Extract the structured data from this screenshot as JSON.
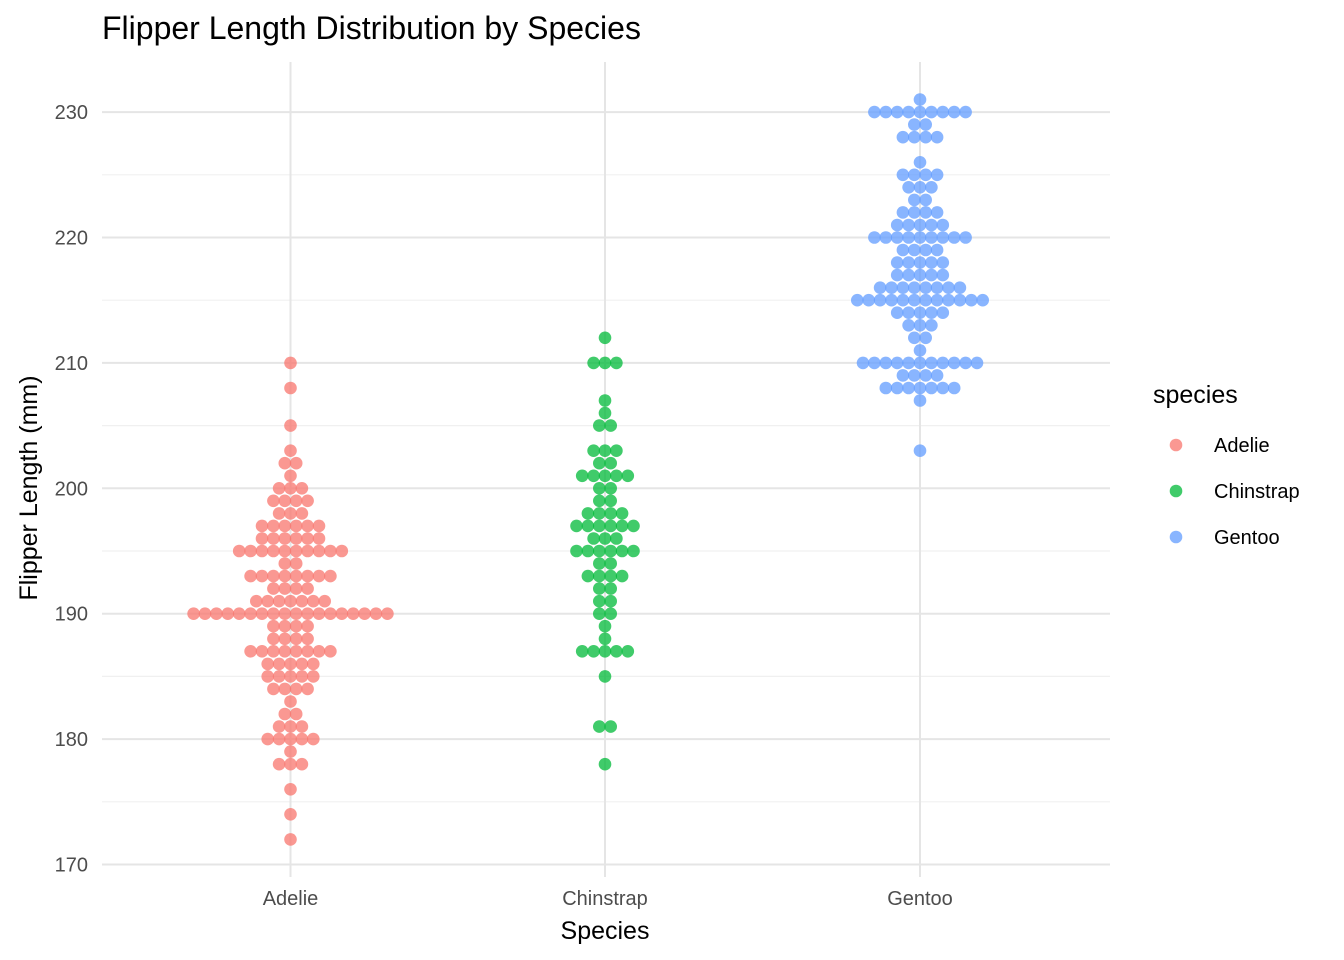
{
  "chart_data": {
    "type": "scatter",
    "subtype": "beeswarm",
    "title": "Flipper Length Distribution by Species",
    "xlabel": "Species",
    "ylabel": "Flipper Length (mm)",
    "ylim": [
      170,
      230
    ],
    "yticks": [
      170,
      180,
      190,
      200,
      210,
      220,
      230
    ],
    "categories": [
      "Adelie",
      "Chinstrap",
      "Gentoo"
    ],
    "grid": true,
    "legend": {
      "title": "species",
      "position": "right"
    },
    "series": [
      {
        "name": "Adelie",
        "color": "#F8766D",
        "values": [
          172,
          174,
          176,
          178,
          178,
          178,
          179,
          180,
          180,
          180,
          180,
          180,
          181,
          181,
          181,
          182,
          182,
          183,
          184,
          184,
          184,
          184,
          185,
          185,
          185,
          185,
          185,
          186,
          186,
          186,
          186,
          186,
          187,
          187,
          187,
          187,
          187,
          187,
          187,
          187,
          188,
          188,
          188,
          188,
          189,
          189,
          189,
          189,
          190,
          190,
          190,
          190,
          190,
          190,
          190,
          190,
          190,
          190,
          190,
          190,
          190,
          190,
          190,
          190,
          190,
          190,
          191,
          191,
          191,
          191,
          191,
          191,
          191,
          192,
          192,
          192,
          192,
          193,
          193,
          193,
          193,
          193,
          193,
          193,
          193,
          194,
          194,
          195,
          195,
          195,
          195,
          195,
          195,
          195,
          195,
          195,
          195,
          196,
          196,
          196,
          196,
          196,
          196,
          197,
          197,
          197,
          197,
          197,
          197,
          198,
          198,
          198,
          199,
          199,
          199,
          199,
          200,
          200,
          200,
          201,
          202,
          202,
          203,
          205,
          208,
          210
        ]
      },
      {
        "name": "Chinstrap",
        "color": "#00BA38",
        "values": [
          178,
          181,
          181,
          185,
          187,
          187,
          187,
          187,
          187,
          188,
          189,
          190,
          190,
          191,
          191,
          192,
          192,
          193,
          193,
          193,
          193,
          194,
          194,
          195,
          195,
          195,
          195,
          195,
          195,
          196,
          196,
          196,
          197,
          197,
          197,
          197,
          197,
          197,
          198,
          198,
          198,
          198,
          199,
          199,
          200,
          200,
          201,
          201,
          201,
          201,
          201,
          202,
          202,
          203,
          203,
          203,
          205,
          205,
          206,
          207,
          210,
          210,
          210,
          212
        ]
      },
      {
        "name": "Gentoo",
        "color": "#619CFF",
        "values": [
          203,
          207,
          208,
          208,
          208,
          208,
          208,
          208,
          208,
          209,
          209,
          209,
          209,
          210,
          210,
          210,
          210,
          210,
          210,
          210,
          210,
          210,
          210,
          210,
          211,
          212,
          212,
          213,
          213,
          213,
          214,
          214,
          214,
          214,
          214,
          215,
          215,
          215,
          215,
          215,
          215,
          215,
          215,
          215,
          215,
          215,
          215,
          216,
          216,
          216,
          216,
          216,
          216,
          216,
          216,
          217,
          217,
          217,
          217,
          217,
          218,
          218,
          218,
          218,
          218,
          219,
          219,
          219,
          219,
          220,
          220,
          220,
          220,
          220,
          220,
          220,
          220,
          220,
          221,
          221,
          221,
          221,
          221,
          222,
          222,
          222,
          222,
          223,
          223,
          224,
          224,
          224,
          225,
          225,
          225,
          225,
          226,
          228,
          228,
          228,
          228,
          229,
          229,
          230,
          230,
          230,
          230,
          230,
          230,
          230,
          230,
          230,
          231
        ]
      }
    ]
  }
}
